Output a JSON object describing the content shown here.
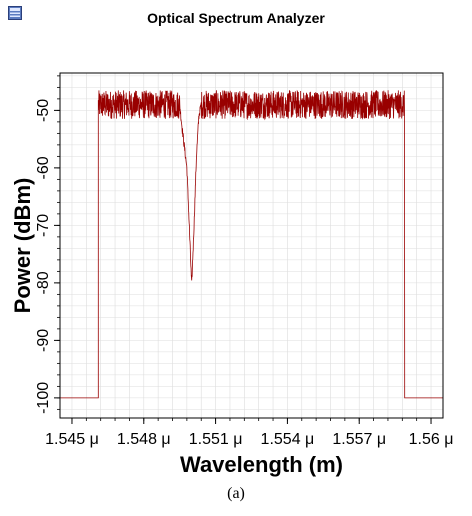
{
  "window": {
    "title": "Optical Spectrum Analyzer",
    "icon": "app-window-icon"
  },
  "caption": "(a)",
  "colors": {
    "trace": "#990000",
    "grid": "#dddddd",
    "frame": "#000000"
  },
  "chart_data": {
    "type": "line",
    "title": "Optical Spectrum Analyzer",
    "xlabel": "Wavelength (m)",
    "ylabel": "Power (dBm)",
    "x_unit_suffix": "μ",
    "xlim": [
      1.5445,
      1.5605
    ],
    "ylim": [
      -103.5,
      -43.5
    ],
    "xticks": [
      1.545,
      1.548,
      1.551,
      1.554,
      1.557,
      1.56
    ],
    "xtick_labels": [
      "1.545 μ",
      "1.548 μ",
      "1.551 μ",
      "1.554 μ",
      "1.557 μ",
      "1.56 μ"
    ],
    "yticks": [
      -50,
      -60,
      -70,
      -80,
      -90,
      -100
    ],
    "ytick_labels": [
      "-50",
      "-60",
      "-70",
      "-80",
      "-90",
      "-100"
    ],
    "grid": true,
    "series": [
      {
        "values_description": "Flat broadband noise around -49 dBm (±2 dB ripple) from 1.5461 μ to 1.5589 μ, -100 dBm floor outside, with a sharp notch near 1.5500 μ dipping to about -80 dBm.",
        "points": [
          [
            1.5445,
            -100
          ],
          [
            1.5461,
            -100
          ],
          [
            1.5461,
            -49
          ],
          [
            1.5495,
            -49
          ],
          [
            1.5496,
            -53
          ],
          [
            1.5498,
            -60
          ],
          [
            1.5499,
            -70
          ],
          [
            1.55,
            -80.5
          ],
          [
            1.5501,
            -70
          ],
          [
            1.5502,
            -58
          ],
          [
            1.5503,
            -51
          ],
          [
            1.5504,
            -49
          ],
          [
            1.5589,
            -49
          ],
          [
            1.5589,
            -100
          ],
          [
            1.5605,
            -100
          ]
        ],
        "band_upper": -46.5,
        "band_lower": -51.5
      }
    ]
  }
}
